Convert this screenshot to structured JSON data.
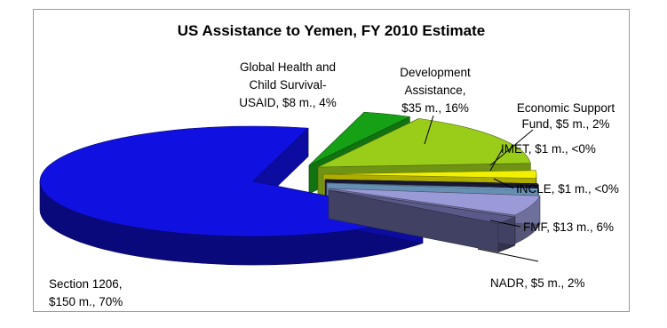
{
  "chart_data": {
    "type": "pie",
    "title": "US Assistance to Yemen, FY 2010 Estimate",
    "unit": "$ m.",
    "slices": [
      {
        "label": "Global Health and Child Survival-USAID",
        "value": 8,
        "percent": "4%",
        "color": "#16a016",
        "label_lines": [
          "Global Health and",
          "Child Survival-",
          "USAID, $8 m., 4%"
        ]
      },
      {
        "label": "Development Assistance",
        "value": 35,
        "percent": "16%",
        "color": "#9acc1a",
        "label_lines": [
          "Development",
          "Assistance,",
          "$35 m., 16%"
        ]
      },
      {
        "label": "Economic Support Fund",
        "value": 5,
        "percent": "2%",
        "color": "#f0f000",
        "label_lines": [
          "Economic Support",
          "Fund, $5 m., 2%"
        ]
      },
      {
        "label": "IMET",
        "value": 1,
        "percent": "<0%",
        "color": "#222244",
        "label_lines": [
          "IMET, $1 m., <0%"
        ]
      },
      {
        "label": "INCLE",
        "value": 1,
        "percent": "<0%",
        "color": "#8cc8f8",
        "label_lines": [
          "INCLE, $1 m., <0%"
        ]
      },
      {
        "label": "FMF",
        "value": 13,
        "percent": "6%",
        "color": "#9a9ad8",
        "label_lines": [
          "FMF, $13 m., 6%"
        ]
      },
      {
        "label": "NADR",
        "value": 5,
        "percent": "2%",
        "color": "#5a5a8a",
        "label_lines": [
          "NADR, $5 m., 2%"
        ]
      },
      {
        "label": "Section 1206",
        "value": 150,
        "percent": "70%",
        "color": "#1010e0",
        "label_lines": [
          "Section 1206,",
          "$150 m., 70%"
        ]
      }
    ]
  }
}
